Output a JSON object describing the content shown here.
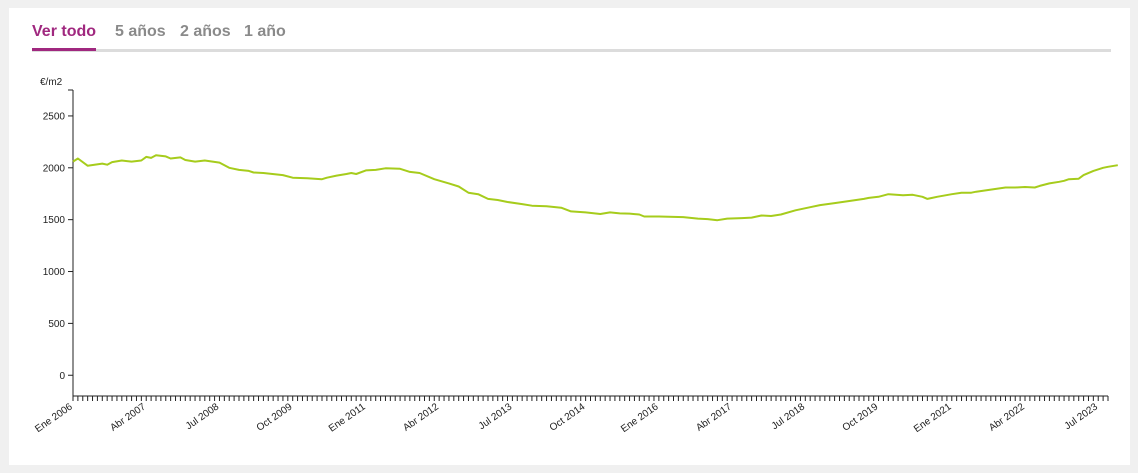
{
  "tabs": [
    {
      "label": "Ver todo",
      "active": true
    },
    {
      "label": "5 años",
      "active": false
    },
    {
      "label": "2 años",
      "active": false
    },
    {
      "label": "1 año",
      "active": false
    }
  ],
  "colors": {
    "accent": "#a0287f",
    "line": "#a6cc1c",
    "tab_inactive": "#8a8a8a"
  },
  "chart_data": {
    "type": "line",
    "ylabel": "€/m2",
    "ylim": [
      -200,
      2750
    ],
    "yticks": [
      0,
      500,
      1000,
      1500,
      2000,
      2500
    ],
    "x_range": [
      "2006-01",
      "2023-09"
    ],
    "xtick_labels": [
      {
        "date": "2006-01",
        "label": "Ene 2006"
      },
      {
        "date": "2007-04",
        "label": "Abr 2007"
      },
      {
        "date": "2008-07",
        "label": "Jul 2008"
      },
      {
        "date": "2009-10",
        "label": "Oct 2009"
      },
      {
        "date": "2011-01",
        "label": "Ene 2011"
      },
      {
        "date": "2012-04",
        "label": "Abr 2012"
      },
      {
        "date": "2013-07",
        "label": "Jul 2013"
      },
      {
        "date": "2014-10",
        "label": "Oct 2014"
      },
      {
        "date": "2016-01",
        "label": "Ene 2016"
      },
      {
        "date": "2017-04",
        "label": "Abr 2017"
      },
      {
        "date": "2018-07",
        "label": "Jul 2018"
      },
      {
        "date": "2019-10",
        "label": "Oct 2019"
      },
      {
        "date": "2021-01",
        "label": "Ene 2021"
      },
      {
        "date": "2022-04",
        "label": "Abr 2022"
      },
      {
        "date": "2023-07",
        "label": "Jul 2023"
      }
    ],
    "series": [
      {
        "points": [
          [
            "2006-01",
            2060
          ],
          [
            "2006-02",
            2090
          ],
          [
            "2006-04",
            2020
          ],
          [
            "2006-07",
            2040
          ],
          [
            "2006-08",
            2030
          ],
          [
            "2006-09",
            2055
          ],
          [
            "2006-11",
            2070
          ],
          [
            "2007-01",
            2060
          ],
          [
            "2007-03",
            2070
          ],
          [
            "2007-04",
            2105
          ],
          [
            "2007-05",
            2095
          ],
          [
            "2007-06",
            2120
          ],
          [
            "2007-08",
            2110
          ],
          [
            "2007-09",
            2090
          ],
          [
            "2007-11",
            2100
          ],
          [
            "2007-12",
            2075
          ],
          [
            "2008-02",
            2060
          ],
          [
            "2008-04",
            2070
          ],
          [
            "2008-07",
            2050
          ],
          [
            "2008-09",
            2000
          ],
          [
            "2008-11",
            1980
          ],
          [
            "2009-01",
            1970
          ],
          [
            "2009-02",
            1955
          ],
          [
            "2009-04",
            1950
          ],
          [
            "2009-08",
            1930
          ],
          [
            "2009-10",
            1905
          ],
          [
            "2010-01",
            1900
          ],
          [
            "2010-04",
            1890
          ],
          [
            "2010-05",
            1905
          ],
          [
            "2010-07",
            1925
          ],
          [
            "2010-09",
            1940
          ],
          [
            "2010-10",
            1950
          ],
          [
            "2010-11",
            1940
          ],
          [
            "2011-01",
            1975
          ],
          [
            "2011-03",
            1980
          ],
          [
            "2011-05",
            1995
          ],
          [
            "2011-08",
            1990
          ],
          [
            "2011-10",
            1960
          ],
          [
            "2011-12",
            1950
          ],
          [
            "2012-03",
            1890
          ],
          [
            "2012-06",
            1850
          ],
          [
            "2012-08",
            1820
          ],
          [
            "2012-10",
            1760
          ],
          [
            "2012-12",
            1745
          ],
          [
            "2013-02",
            1700
          ],
          [
            "2013-04",
            1690
          ],
          [
            "2013-06",
            1670
          ],
          [
            "2013-09",
            1650
          ],
          [
            "2013-11",
            1635
          ],
          [
            "2014-02",
            1630
          ],
          [
            "2014-05",
            1615
          ],
          [
            "2014-07",
            1580
          ],
          [
            "2014-10",
            1570
          ],
          [
            "2015-01",
            1555
          ],
          [
            "2015-03",
            1570
          ],
          [
            "2015-05",
            1560
          ],
          [
            "2015-07",
            1558
          ],
          [
            "2015-09",
            1550
          ],
          [
            "2015-10",
            1530
          ],
          [
            "2016-01",
            1530
          ],
          [
            "2016-06",
            1525
          ],
          [
            "2016-09",
            1510
          ],
          [
            "2016-11",
            1505
          ],
          [
            "2017-01",
            1495
          ],
          [
            "2017-03",
            1510
          ],
          [
            "2017-06",
            1515
          ],
          [
            "2017-08",
            1520
          ],
          [
            "2017-10",
            1540
          ],
          [
            "2017-12",
            1535
          ],
          [
            "2018-02",
            1550
          ],
          [
            "2018-05",
            1590
          ],
          [
            "2018-08",
            1620
          ],
          [
            "2018-10",
            1640
          ],
          [
            "2019-01",
            1660
          ],
          [
            "2019-04",
            1680
          ],
          [
            "2019-07",
            1700
          ],
          [
            "2019-08",
            1710
          ],
          [
            "2019-10",
            1720
          ],
          [
            "2019-12",
            1745
          ],
          [
            "2020-03",
            1735
          ],
          [
            "2020-05",
            1740
          ],
          [
            "2020-07",
            1720
          ],
          [
            "2020-08",
            1700
          ],
          [
            "2020-09",
            1710
          ],
          [
            "2020-10",
            1720
          ],
          [
            "2021-01",
            1745
          ],
          [
            "2021-03",
            1760
          ],
          [
            "2021-05",
            1760
          ],
          [
            "2021-06",
            1770
          ],
          [
            "2021-09",
            1790
          ],
          [
            "2021-12",
            1810
          ],
          [
            "2022-02",
            1810
          ],
          [
            "2022-04",
            1815
          ],
          [
            "2022-06",
            1810
          ],
          [
            "2022-07",
            1825
          ],
          [
            "2022-09",
            1850
          ],
          [
            "2022-11",
            1865
          ],
          [
            "2022-12",
            1875
          ],
          [
            "2023-01",
            1890
          ],
          [
            "2023-03",
            1895
          ],
          [
            "2023-04",
            1930
          ],
          [
            "2023-06",
            1970
          ],
          [
            "2023-08",
            2000
          ],
          [
            "2023-09",
            2010
          ],
          [
            "2023-11",
            2025
          ]
        ]
      }
    ],
    "grid": false
  }
}
